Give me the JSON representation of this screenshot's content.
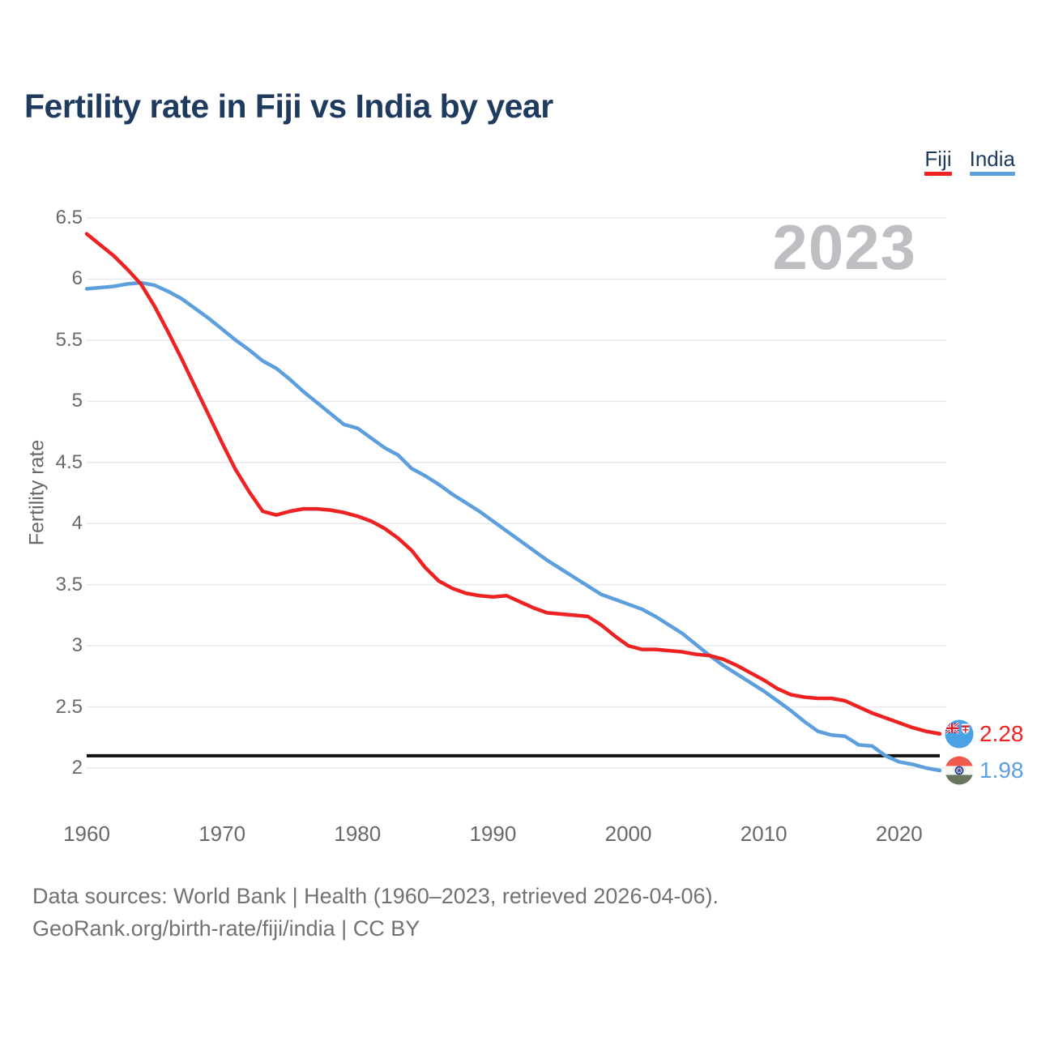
{
  "header": {
    "title": "Fertility rate in Fiji vs India by year"
  },
  "legend": {
    "items": [
      {
        "label": "Fiji",
        "color": "#ee2222"
      },
      {
        "label": "India",
        "color": "#5d9fdd"
      }
    ]
  },
  "chart_data": {
    "type": "line",
    "title": "Fertility rate in Fiji vs India by year",
    "xlabel": "",
    "ylabel": "Fertility rate",
    "ylim": [
      2,
      6.5
    ],
    "xlim": [
      1960,
      2023
    ],
    "yticks": [
      2,
      2.5,
      3,
      3.5,
      4,
      4.5,
      5,
      5.5,
      6,
      6.5
    ],
    "xticks": [
      1960,
      1970,
      1980,
      1990,
      2000,
      2010,
      2020
    ],
    "grid": "horizontal",
    "legend_position": "top-right",
    "watermark": "2023",
    "reference_line": {
      "value": 2.1,
      "color": "#111111"
    },
    "x_start": 1960,
    "x_step": 1,
    "series": [
      {
        "name": "Fiji",
        "color": "#ee2222",
        "end_label": "2.28",
        "values": [
          6.37,
          6.28,
          6.19,
          6.08,
          5.96,
          5.78,
          5.57,
          5.35,
          5.12,
          4.89,
          4.66,
          4.44,
          4.26,
          4.1,
          4.07,
          4.1,
          4.12,
          4.12,
          4.11,
          4.09,
          4.06,
          4.02,
          3.96,
          3.88,
          3.78,
          3.64,
          3.53,
          3.47,
          3.43,
          3.41,
          3.4,
          3.41,
          3.36,
          3.31,
          3.27,
          3.26,
          3.25,
          3.24,
          3.17,
          3.08,
          3.0,
          2.97,
          2.97,
          2.96,
          2.95,
          2.93,
          2.92,
          2.89,
          2.84,
          2.78,
          2.72,
          2.65,
          2.6,
          2.58,
          2.57,
          2.57,
          2.55,
          2.5,
          2.45,
          2.41,
          2.37,
          2.33,
          2.3,
          2.28
        ]
      },
      {
        "name": "India",
        "color": "#5d9fdd",
        "end_label": "1.98",
        "values": [
          5.92,
          5.93,
          5.94,
          5.96,
          5.97,
          5.95,
          5.9,
          5.84,
          5.76,
          5.68,
          5.59,
          5.5,
          5.42,
          5.33,
          5.27,
          5.18,
          5.08,
          4.99,
          4.9,
          4.81,
          4.78,
          4.7,
          4.62,
          4.56,
          4.45,
          4.39,
          4.32,
          4.24,
          4.17,
          4.1,
          4.02,
          3.94,
          3.86,
          3.78,
          3.7,
          3.63,
          3.56,
          3.49,
          3.42,
          3.38,
          3.34,
          3.3,
          3.24,
          3.17,
          3.1,
          3.01,
          2.92,
          2.84,
          2.77,
          2.7,
          2.63,
          2.55,
          2.47,
          2.38,
          2.3,
          2.27,
          2.26,
          2.19,
          2.18,
          2.1,
          2.05,
          2.03,
          2.0,
          1.98
        ]
      }
    ]
  },
  "footer": {
    "line1": "Data sources: World Bank | Health (1960–2023, retrieved 2026-04-06).",
    "line2": "GeoRank.org/birth-rate/fiji/india | CC BY"
  },
  "colors": {
    "title": "#1f3a5f",
    "axis_text": "#68686d",
    "gridline": "#e8e8ea",
    "watermark": "#bfbfc3",
    "footer_text": "#717176",
    "reference_line": "#111111",
    "fiji_line": "#ee2222",
    "india_line": "#5d9fdd"
  }
}
